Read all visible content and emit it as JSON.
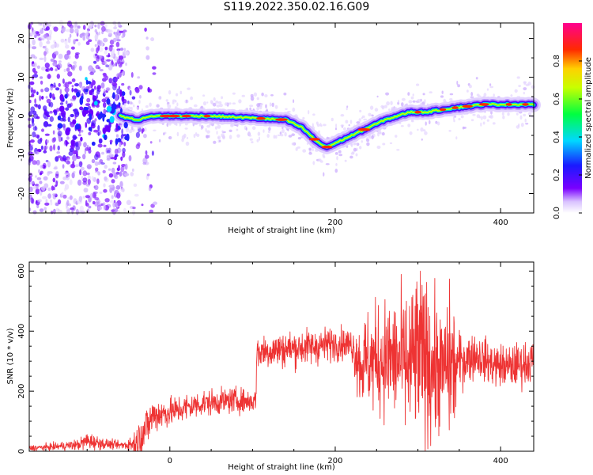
{
  "title": "S119.2022.350.02.16.G09",
  "colors": {
    "snr_line": "#ee3333",
    "background": "#ffffff",
    "axes": "#000000"
  },
  "chart_data": [
    {
      "type": "heatmap",
      "xlabel": "Height of straight line (km)",
      "ylabel": "Frequency (Hz)",
      "xlim": [
        -170,
        440
      ],
      "ylim": [
        -25,
        24
      ],
      "x_ticks": [
        0,
        200,
        400
      ],
      "y_ticks": [
        -20,
        -10,
        0,
        10,
        20
      ],
      "colorbar": {
        "label": "Normalized spectral amplitude",
        "range": [
          0,
          1
        ],
        "ticks": [
          "0.0",
          "0.2",
          "0.4",
          "0.6",
          "0.8"
        ],
        "colormap": "white-purple-blue-cyan-green-yellow-red-magenta"
      },
      "ridge": {
        "x": [
          -60,
          -40,
          -20,
          0,
          50,
          100,
          140,
          160,
          180,
          190,
          200,
          230,
          260,
          290,
          310,
          340,
          380,
          420,
          440
        ],
        "y": [
          0,
          -1,
          0,
          0,
          0,
          -0.5,
          -1,
          -3,
          -7,
          -8,
          -7,
          -4,
          -1,
          1,
          1,
          2,
          3,
          3,
          3
        ]
      }
    },
    {
      "type": "line",
      "xlabel": "Height of straight line (km)",
      "ylabel": "SNR (10 * v/v)",
      "xlim": [
        -170,
        440
      ],
      "ylim": [
        0,
        630
      ],
      "x_ticks": [
        0,
        200,
        400
      ],
      "y_ticks": [
        0,
        200,
        400,
        600
      ],
      "series": [
        {
          "x": [
            -170,
            -140,
            -110,
            -100,
            -80,
            -60,
            -50,
            -40,
            -35,
            -30,
            -20,
            0,
            20,
            40,
            60,
            80,
            100,
            104,
            105,
            120,
            140,
            160,
            180,
            200,
            220,
            230,
            240,
            260,
            280,
            290,
            300,
            310,
            320,
            330,
            340,
            345,
            350,
            370,
            390,
            410,
            425,
            440
          ],
          "mean": [
            10,
            15,
            22,
            35,
            25,
            20,
            22,
            30,
            60,
            70,
            120,
            130,
            145,
            160,
            165,
            170,
            165,
            170,
            330,
            335,
            340,
            345,
            350,
            360,
            355,
            290,
            300,
            310,
            300,
            280,
            320,
            300,
            280,
            270,
            290,
            270,
            300,
            320,
            290,
            280,
            290,
            300
          ],
          "spread": [
            8,
            10,
            15,
            25,
            15,
            10,
            20,
            40,
            60,
            60,
            50,
            40,
            40,
            35,
            35,
            35,
            30,
            30,
            50,
            50,
            50,
            50,
            50,
            45,
            45,
            120,
            140,
            160,
            180,
            220,
            240,
            230,
            200,
            150,
            220,
            150,
            80,
            60,
            60,
            60,
            60,
            60
          ]
        }
      ]
    }
  ]
}
